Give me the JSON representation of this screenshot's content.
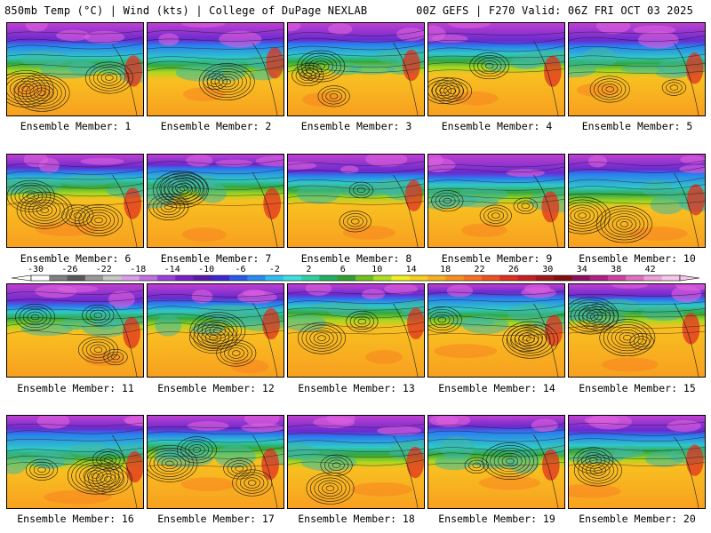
{
  "header": {
    "left": "850mb Temp (°C) | Wind (kts) | College of DuPage NEXLAB",
    "right": "00Z GEFS | F270 Valid: 06Z FRI OCT 03 2025"
  },
  "members": [
    {
      "label": "Ensemble Member: 1"
    },
    {
      "label": "Ensemble Member: 2"
    },
    {
      "label": "Ensemble Member: 3"
    },
    {
      "label": "Ensemble Member: 4"
    },
    {
      "label": "Ensemble Member: 5"
    },
    {
      "label": "Ensemble Member: 6"
    },
    {
      "label": "Ensemble Member: 7"
    },
    {
      "label": "Ensemble Member: 8"
    },
    {
      "label": "Ensemble Member: 9"
    },
    {
      "label": "Ensemble Member: 10"
    },
    {
      "label": "Ensemble Member: 11"
    },
    {
      "label": "Ensemble Member: 12"
    },
    {
      "label": "Ensemble Member: 13"
    },
    {
      "label": "Ensemble Member: 14"
    },
    {
      "label": "Ensemble Member: 15"
    },
    {
      "label": "Ensemble Member: 16"
    },
    {
      "label": "Ensemble Member: 17"
    },
    {
      "label": "Ensemble Member: 18"
    },
    {
      "label": "Ensemble Member: 19"
    },
    {
      "label": "Ensemble Member: 20"
    }
  ],
  "colorbar": {
    "ticks": [
      "-30",
      "-26",
      "-22",
      "-18",
      "-14",
      "-10",
      "-6",
      "-2",
      "2",
      "6",
      "10",
      "14",
      "18",
      "22",
      "26",
      "30",
      "34",
      "38",
      "42"
    ],
    "colors": [
      "#ffffff",
      "#808080",
      "#5a5a5a",
      "#9a9a9a",
      "#c8c8c8",
      "#d8a0e8",
      "#c070e0",
      "#9a3fd8",
      "#7a1fc8",
      "#5a1aa8",
      "#3a2ad0",
      "#2a5ae8",
      "#2a8cf0",
      "#30c0f0",
      "#40e0e0",
      "#30d0a0",
      "#20b060",
      "#30a030",
      "#70c020",
      "#b0e020",
      "#f0f020",
      "#f8d020",
      "#f8b020",
      "#f89020",
      "#f87020",
      "#f05020",
      "#e03020",
      "#c82020",
      "#a01818",
      "#801010",
      "#901060",
      "#b02080",
      "#d040a0",
      "#e070c0",
      "#f0a0d8",
      "#f8c8e8"
    ]
  }
}
